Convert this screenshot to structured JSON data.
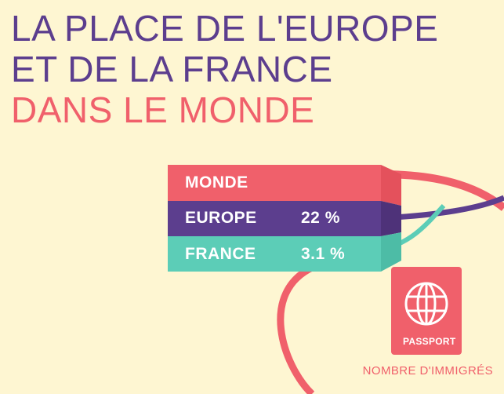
{
  "title": {
    "line1": "LA PLACE DE L'EUROPE",
    "line2": "ET DE LA FRANCE",
    "line3": "DANS LE MONDE"
  },
  "colors": {
    "background": "#fef6d2",
    "purple": "#5c3e8e",
    "coral": "#f0606b",
    "teal": "#5ccdb7"
  },
  "bars": [
    {
      "label": "MONDE",
      "value": ""
    },
    {
      "label": "EUROPE",
      "value": "22 %"
    },
    {
      "label": "FRANCE",
      "value": "3.1 %"
    }
  ],
  "passport": {
    "label": "PASSPORT",
    "icon": "globe-icon"
  },
  "caption": "NOMBRE D'IMMIGRÉS"
}
